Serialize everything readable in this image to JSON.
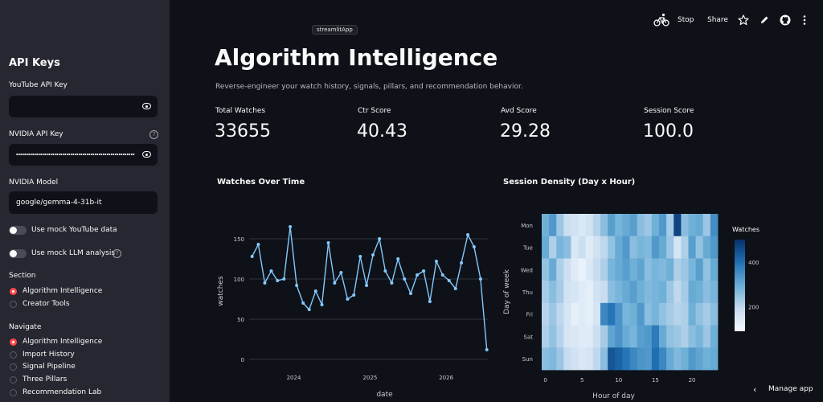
{
  "sidebar": {
    "title": "API Keys",
    "youtube_label": "YouTube API Key",
    "youtube_value": "",
    "nvidia_label": "NVIDIA API Key",
    "nvidia_model_label": "NVIDIA Model",
    "nvidia_model_value": "google/gemma-4-31b-it",
    "toggles": [
      "Use mock YouTube data",
      "Use mock LLM analysis"
    ],
    "section_label": "Section",
    "section_options": [
      "Algorithm Intelligence",
      "Creator Tools"
    ],
    "section_selected": 0,
    "navigate_label": "Navigate",
    "navigate_options": [
      "Algorithm Intelligence",
      "Import History",
      "Signal Pipeline",
      "Three Pillars",
      "Recommendation Lab"
    ],
    "navigate_selected": 0
  },
  "header": {
    "badge": "streamlitApp",
    "stop": "Stop",
    "share": "Share",
    "icons": [
      "running-bicycle-icon",
      "star-icon",
      "pencil-icon",
      "github-icon",
      "more-vertical-icon"
    ]
  },
  "main": {
    "title": "Algorithm Intelligence",
    "subtitle": "Reverse-engineer your watch history, signals, pillars, and recommendation behavior.",
    "metrics": [
      {
        "label": "Total Watches",
        "value": "33655"
      },
      {
        "label": "Ctr Score",
        "value": "40.43"
      },
      {
        "label": "Avd Score",
        "value": "29.28"
      },
      {
        "label": "Session Score",
        "value": "100.0"
      }
    ],
    "manage_app": "Manage app"
  },
  "colors": {
    "accent": "#ff4b4b",
    "line": "#83c9ff",
    "sidebar_bg": "#262730",
    "main_bg": "#0e1117"
  },
  "chart_data": [
    {
      "type": "line",
      "title": "Watches Over Time",
      "xlabel": "date",
      "ylabel": "watches",
      "xlim": [
        "2023-06-01",
        "2026-07-20"
      ],
      "ylim": [
        0,
        170
      ],
      "xticks": [
        "2024",
        "2025",
        "2026"
      ],
      "yticks": [
        0,
        50,
        100,
        150
      ],
      "grid": true,
      "markers": true,
      "series": [
        {
          "x": [
            "2023-06-15",
            "2023-07-15",
            "2023-08-15",
            "2023-09-15",
            "2023-10-15",
            "2023-11-15",
            "2023-12-15",
            "2024-01-15",
            "2024-02-15",
            "2024-03-15",
            "2024-04-15",
            "2024-05-15",
            "2024-06-15",
            "2024-07-15",
            "2024-08-15",
            "2024-09-15",
            "2024-10-15",
            "2024-11-15",
            "2024-12-15",
            "2025-01-15",
            "2025-02-15",
            "2025-03-15",
            "2025-04-15",
            "2025-05-15",
            "2025-06-15",
            "2025-07-15",
            "2025-08-15",
            "2025-09-15",
            "2025-10-15",
            "2025-11-15",
            "2025-12-15",
            "2026-01-15",
            "2026-02-15",
            "2026-03-15",
            "2026-04-15",
            "2026-05-15",
            "2026-06-15",
            "2026-07-15"
          ],
          "y": [
            128,
            143,
            95,
            110,
            98,
            100,
            165,
            92,
            70,
            62,
            85,
            68,
            145,
            95,
            108,
            75,
            80,
            128,
            92,
            130,
            150,
            110,
            95,
            125,
            100,
            82,
            105,
            110,
            72,
            122,
            105,
            98,
            88,
            120,
            155,
            140,
            100,
            12
          ]
        }
      ]
    },
    {
      "type": "heatmap",
      "title": "Session Density (Day x Hour)",
      "xlabel": "Hour of day",
      "ylabel": "Day of week",
      "y_categories": [
        "Mon",
        "Tue",
        "Wed",
        "Thu",
        "Fri",
        "Sat",
        "Sun"
      ],
      "x_categories": [
        0,
        1,
        2,
        3,
        4,
        5,
        6,
        7,
        8,
        9,
        10,
        11,
        12,
        13,
        14,
        15,
        16,
        17,
        18,
        19,
        20,
        21,
        22,
        23
      ],
      "xticks": [
        0,
        5,
        10,
        15,
        20
      ],
      "colorbar_title": "Watches",
      "colorbar_ticks": [
        200,
        400
      ],
      "zlim": [
        90,
        500
      ],
      "z": [
        [
          290,
          330,
          240,
          180,
          170,
          150,
          170,
          210,
          260,
          320,
          280,
          300,
          320,
          260,
          240,
          290,
          330,
          230,
          470,
          260,
          290,
          300,
          240,
          350
        ],
        [
          300,
          220,
          280,
          260,
          150,
          180,
          140,
          170,
          200,
          250,
          300,
          330,
          260,
          280,
          270,
          330,
          300,
          240,
          160,
          220,
          320,
          250,
          300,
          330
        ],
        [
          250,
          300,
          220,
          180,
          140,
          120,
          150,
          190,
          220,
          280,
          300,
          320,
          290,
          310,
          260,
          280,
          270,
          290,
          220,
          240,
          280,
          320,
          250,
          300
        ],
        [
          230,
          260,
          230,
          170,
          160,
          140,
          130,
          170,
          190,
          260,
          280,
          300,
          320,
          290,
          270,
          280,
          290,
          240,
          200,
          230,
          300,
          290,
          260,
          280
        ],
        [
          210,
          240,
          200,
          160,
          130,
          140,
          130,
          160,
          360,
          390,
          340,
          280,
          290,
          330,
          260,
          280,
          250,
          230,
          210,
          220,
          290,
          250,
          230,
          260
        ],
        [
          220,
          250,
          210,
          160,
          150,
          140,
          140,
          180,
          230,
          310,
          340,
          300,
          280,
          320,
          330,
          380,
          300,
          250,
          240,
          220,
          260,
          280,
          240,
          290
        ],
        [
          260,
          270,
          240,
          190,
          170,
          150,
          160,
          200,
          260,
          440,
          420,
          390,
          360,
          340,
          330,
          400,
          360,
          300,
          270,
          290,
          330,
          310,
          290,
          300
        ]
      ]
    }
  ]
}
